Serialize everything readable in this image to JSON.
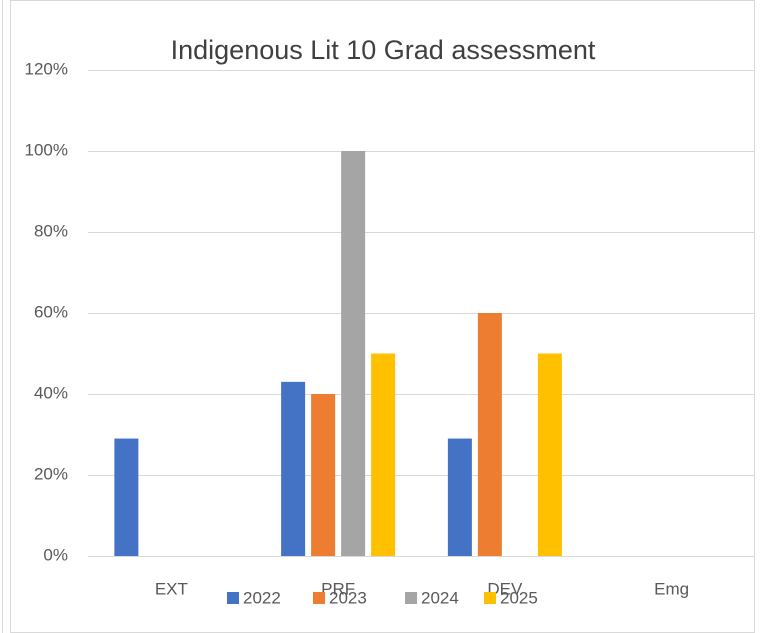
{
  "chart_data": {
    "type": "bar",
    "title": "Indigenous Lit 10 Grad assessment",
    "categories": [
      "EXT",
      "PRF",
      "DEV",
      "Emg"
    ],
    "series": [
      {
        "name": "2022",
        "color": "#4472c4",
        "values": [
          29,
          43,
          29,
          0
        ]
      },
      {
        "name": "2023",
        "color": "#ed7d31",
        "values": [
          0,
          40,
          60,
          0
        ]
      },
      {
        "name": "2024",
        "color": "#a5a5a5",
        "values": [
          0,
          100,
          0,
          0
        ]
      },
      {
        "name": "2025",
        "color": "#ffc000",
        "values": [
          0,
          50,
          50,
          0
        ]
      }
    ],
    "ylim": [
      0,
      120
    ],
    "yticks": [
      {
        "value": 0,
        "label": "0%"
      },
      {
        "value": 20,
        "label": "20%"
      },
      {
        "value": 40,
        "label": "40%"
      },
      {
        "value": 60,
        "label": "60%"
      },
      {
        "value": 80,
        "label": "80%"
      },
      {
        "value": 100,
        "label": "100%"
      },
      {
        "value": 120,
        "label": "120%"
      }
    ],
    "grid": true,
    "legend": "bottom"
  }
}
